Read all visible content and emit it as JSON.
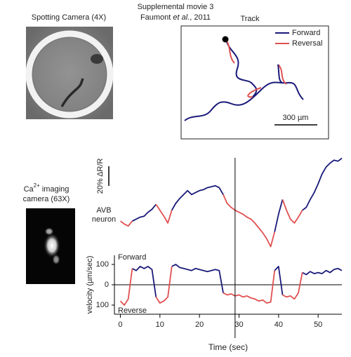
{
  "header": {
    "title": "Supplemental movie 3",
    "citation_author": "Faumont",
    "citation_etal": "et al.",
    "citation_year": ", 2011"
  },
  "spotting_camera": {
    "label": "Spotting Camera (4X)"
  },
  "track": {
    "title": "Track",
    "legend": [
      {
        "name": "Forward",
        "color": "#1a1a7a"
      },
      {
        "name": "Reversal",
        "color": "#e05050"
      }
    ],
    "scale_bar_label": "300 µm"
  },
  "imaging_camera": {
    "label_ca": "Ca",
    "label_sup": "2+",
    "label_rest": " imaging",
    "label_line2": "camera (63X)"
  },
  "chart_data": [
    {
      "type": "line",
      "label_lines": [
        "AVB",
        "neuron"
      ],
      "x": [
        0,
        1,
        2,
        3,
        4,
        5,
        6,
        7,
        8,
        9,
        10,
        11,
        12,
        13,
        14,
        15,
        16,
        17,
        18,
        19,
        20,
        21,
        22,
        23,
        24,
        25,
        26,
        27,
        28,
        29,
        30,
        31,
        32,
        33,
        34,
        35,
        36,
        37,
        38,
        39,
        40,
        41,
        42,
        43,
        44,
        45,
        46,
        47,
        48,
        49,
        50,
        51,
        52,
        53,
        54,
        55,
        56
      ],
      "xlim": [
        -1.5,
        56
      ],
      "ylim": [
        0,
        100
      ],
      "scale_bar": {
        "value": 20,
        "label": "20% ΔR/R"
      },
      "series": [
        {
          "color": "#1a1a7a",
          "values": [
            null,
            null,
            null,
            32,
            34,
            36,
            37,
            41,
            44,
            49,
            null,
            null,
            null,
            43,
            50,
            55,
            59,
            63,
            59,
            61,
            63,
            64,
            66,
            67,
            68,
            66,
            59,
            null,
            null,
            null,
            null,
            null,
            null,
            null,
            null,
            null,
            null,
            null,
            null,
            21,
            39,
            54,
            null,
            null,
            null,
            null,
            43,
            46,
            54,
            61,
            70,
            80,
            87,
            91,
            94,
            93,
            96
          ]
        },
        {
          "color": "#e05050",
          "values": [
            32,
            29,
            27,
            32,
            null,
            null,
            null,
            null,
            null,
            49,
            43,
            37,
            30,
            43,
            null,
            null,
            null,
            null,
            null,
            null,
            null,
            null,
            null,
            null,
            null,
            null,
            59,
            50,
            46,
            43,
            41,
            39,
            36,
            34,
            30,
            25,
            20,
            14,
            6,
            21,
            null,
            54,
            43,
            34,
            30,
            36,
            43,
            null,
            null,
            null,
            null,
            null,
            null,
            null,
            null,
            null,
            null
          ]
        }
      ]
    },
    {
      "type": "line",
      "xlabel": "Time (sec)",
      "ylabel": "velocity (µm/sec)",
      "x": [
        0,
        1,
        2,
        3,
        4,
        5,
        6,
        7,
        8,
        9,
        10,
        11,
        12,
        13,
        14,
        15,
        16,
        17,
        18,
        19,
        20,
        21,
        22,
        23,
        24,
        25,
        26,
        27,
        28,
        29,
        30,
        31,
        32,
        33,
        34,
        35,
        36,
        37,
        38,
        39,
        40,
        41,
        42,
        43,
        44,
        45,
        46,
        47,
        48,
        49,
        50,
        51,
        52,
        53,
        54,
        55,
        56
      ],
      "xlim": [
        -1.5,
        56
      ],
      "xticks": [
        0,
        10,
        20,
        30,
        40,
        50
      ],
      "ylim": [
        -145,
        145
      ],
      "yticks": [
        {
          "value": -100,
          "label": "100"
        },
        0,
        100
      ],
      "zero_line": true,
      "cursor": 29,
      "series": [
        {
          "name": "Forward",
          "color": "#1a1a7a",
          "values": [
            null,
            null,
            null,
            80,
            70,
            90,
            80,
            90,
            75,
            -60,
            null,
            null,
            null,
            90,
            100,
            85,
            80,
            75,
            70,
            80,
            75,
            70,
            65,
            70,
            75,
            70,
            -40,
            null,
            null,
            null,
            null,
            null,
            null,
            null,
            null,
            null,
            null,
            null,
            null,
            70,
            90,
            -50,
            null,
            null,
            null,
            null,
            60,
            50,
            65,
            55,
            60,
            55,
            70,
            60,
            75,
            80,
            70
          ]
        },
        {
          "name": "Reverse",
          "color": "#e05050",
          "values": [
            -80,
            -100,
            -70,
            80,
            null,
            null,
            null,
            null,
            null,
            -60,
            -90,
            -80,
            -60,
            90,
            null,
            null,
            null,
            null,
            null,
            null,
            null,
            null,
            null,
            null,
            null,
            null,
            -40,
            -50,
            -45,
            -55,
            -50,
            -60,
            -55,
            -65,
            -70,
            -80,
            -75,
            -90,
            -85,
            70,
            null,
            -50,
            -60,
            -55,
            -70,
            -40,
            60,
            null,
            null,
            null,
            null,
            null,
            null,
            null,
            null,
            null,
            null
          ]
        }
      ]
    }
  ]
}
